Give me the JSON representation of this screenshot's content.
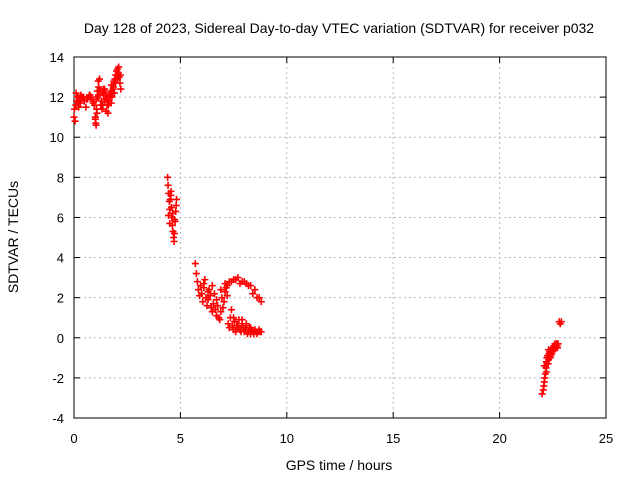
{
  "chart_data": {
    "type": "scatter",
    "title": "Day 128 of 2023, Sidereal Day-to-day VTEC variation (SDTVAR) for receiver p032",
    "xlabel": "GPS time / hours",
    "ylabel": "SDTVAR / TECUs",
    "xlim": [
      0,
      25
    ],
    "ylim": [
      -4,
      14
    ],
    "xticks": [
      "0",
      "5",
      "10",
      "15",
      "20",
      "25"
    ],
    "yticks": [
      "-4",
      "-2",
      "0",
      "2",
      "4",
      "6",
      "8",
      "10",
      "12",
      "14"
    ],
    "grid": true,
    "marker": "plus",
    "color": "#ff0000",
    "series": [
      {
        "x": [
          0.0,
          0.08,
          0.16,
          0.24,
          0.32,
          0.4,
          0.48,
          0.56,
          0.64,
          0.72,
          0.8,
          0.88,
          0.96,
          1.0,
          1.04,
          1.08,
          1.12,
          1.16,
          1.2,
          1.24,
          1.28,
          1.32,
          1.36,
          1.4,
          1.44,
          1.48,
          1.52,
          1.56,
          1.6,
          1.64,
          1.68,
          1.72,
          1.76,
          1.8,
          1.84,
          1.88,
          1.92,
          1.96,
          2.0,
          2.04,
          2.08,
          2.12,
          2.16,
          2.2,
          0.02,
          0.1,
          0.2,
          0.3,
          0.45,
          0.6,
          0.75,
          0.9,
          1.05,
          1.15,
          1.25,
          1.35,
          1.45,
          1.55,
          1.65,
          1.75,
          1.85,
          1.95,
          2.05,
          0.05,
          0.12,
          0.22,
          1.0,
          1.02,
          1.06,
          1.1,
          1.14,
          1.3,
          1.38,
          1.5,
          1.62,
          1.7,
          1.78,
          1.9,
          2.1,
          2.18
        ],
        "y": [
          11.0,
          11.6,
          12.0,
          11.9,
          12.1,
          12.0,
          11.8,
          11.5,
          11.9,
          12.1,
          12.0,
          11.8,
          11.6,
          11.0,
          10.6,
          11.2,
          12.0,
          12.5,
          12.9,
          12.3,
          11.8,
          11.4,
          11.6,
          12.1,
          12.4,
          11.9,
          11.3,
          11.6,
          11.2,
          11.8,
          12.0,
          12.3,
          12.6,
          12.2,
          12.4,
          12.8,
          12.9,
          13.1,
          13.3,
          13.4,
          13.2,
          13.0,
          12.7,
          12.4,
          11.4,
          12.2,
          11.8,
          11.7,
          12.0,
          11.9,
          12.1,
          11.7,
          11.9,
          12.1,
          11.6,
          12.2,
          11.8,
          11.9,
          12.0,
          11.7,
          12.5,
          12.7,
          12.9,
          10.8,
          11.8,
          11.5,
          10.9,
          10.7,
          11.4,
          12.3,
          12.8,
          11.6,
          12.4,
          12.2,
          11.6,
          12.1,
          12.0,
          12.2,
          13.5,
          13.1
        ]
      },
      {
        "x": [
          4.4,
          4.42,
          4.45,
          4.48,
          4.5,
          4.52,
          4.55,
          4.58,
          4.6,
          4.62,
          4.65,
          4.68,
          4.7,
          4.72,
          4.75,
          4.78,
          4.8,
          4.82,
          4.44,
          4.5,
          4.56,
          4.64,
          4.72
        ],
        "y": [
          8.0,
          7.6,
          7.2,
          6.8,
          6.4,
          6.9,
          7.1,
          6.5,
          6.0,
          5.6,
          5.3,
          5.0,
          4.8,
          5.2,
          5.8,
          6.3,
          6.6,
          6.9,
          6.1,
          5.7,
          7.3,
          6.2,
          5.9
        ]
      },
      {
        "x": [
          5.7,
          5.75,
          5.8,
          5.85,
          5.9,
          5.95,
          6.0,
          6.05,
          6.1,
          6.15,
          6.2,
          6.25,
          6.3,
          6.35,
          6.4,
          6.45,
          6.5,
          6.55,
          6.6,
          6.65,
          6.7,
          6.75,
          6.8,
          6.85,
          6.9,
          6.95,
          7.0,
          7.05,
          7.1,
          7.15,
          7.2,
          7.25,
          7.3,
          7.35,
          7.4,
          7.45,
          7.5,
          7.55,
          7.6,
          7.65,
          7.7,
          7.75,
          7.8,
          7.85,
          7.9,
          7.95,
          8.0,
          8.05,
          8.1,
          8.15,
          8.2,
          8.25,
          8.3,
          8.35,
          8.4,
          8.45,
          8.5,
          8.55,
          8.6,
          8.65,
          8.7,
          8.75,
          8.8,
          6.1,
          6.3,
          6.5,
          6.7,
          6.9,
          7.1,
          7.3,
          7.5,
          7.7,
          7.9,
          8.1,
          8.3,
          8.5,
          8.7,
          7.2,
          7.4,
          7.6,
          7.8,
          8.0,
          8.2,
          8.4,
          8.6,
          8.8,
          7.5,
          7.7,
          7.9,
          8.1,
          8.3
        ],
        "y": [
          3.7,
          3.2,
          2.8,
          2.4,
          2.1,
          2.6,
          2.2,
          1.8,
          2.5,
          2.9,
          2.0,
          1.6,
          1.9,
          2.4,
          2.1,
          1.5,
          1.3,
          1.7,
          2.2,
          1.4,
          1.1,
          1.6,
          1.0,
          0.9,
          1.3,
          2.0,
          1.5,
          1.8,
          2.3,
          2.5,
          2.1,
          0.7,
          0.5,
          1.0,
          1.4,
          0.6,
          0.4,
          0.8,
          0.3,
          0.6,
          0.5,
          0.9,
          0.4,
          0.3,
          0.7,
          0.5,
          0.3,
          0.4,
          0.6,
          0.2,
          0.3,
          0.5,
          0.2,
          0.4,
          0.3,
          0.2,
          0.4,
          0.3,
          0.2,
          0.3,
          0.4,
          0.3,
          0.3,
          2.7,
          2.3,
          2.6,
          1.9,
          2.4,
          2.7,
          2.8,
          2.9,
          3.0,
          2.8,
          2.7,
          2.6,
          2.4,
          2.0,
          2.6,
          2.8,
          2.9,
          2.7,
          2.8,
          2.6,
          2.2,
          2.0,
          1.8,
          1.0,
          0.6,
          0.9,
          0.7,
          0.5
        ]
      },
      {
        "x": [
          22.0,
          22.05,
          22.08,
          22.1,
          22.12,
          22.15,
          22.18,
          22.2,
          22.22,
          22.25,
          22.28,
          22.3,
          22.32,
          22.35,
          22.38,
          22.4,
          22.42,
          22.45,
          22.48,
          22.5,
          22.52,
          22.55,
          22.58,
          22.6,
          22.62,
          22.65,
          22.68,
          22.7,
          22.72,
          22.75,
          22.8,
          22.85,
          22.9,
          22.1,
          22.2,
          22.3
        ],
        "y": [
          -2.8,
          -2.6,
          -2.4,
          -2.2,
          -2.0,
          -1.8,
          -1.5,
          -1.2,
          -1.0,
          -0.9,
          -1.3,
          -1.1,
          -0.8,
          -0.7,
          -1.0,
          -0.9,
          -0.6,
          -0.8,
          -0.7,
          -0.5,
          -0.6,
          -0.4,
          -0.5,
          -0.3,
          -0.4,
          -0.5,
          -0.3,
          -0.4,
          -0.5,
          -0.3,
          0.8,
          0.7,
          0.8,
          -1.4,
          -1.7,
          -0.6
        ]
      }
    ]
  }
}
